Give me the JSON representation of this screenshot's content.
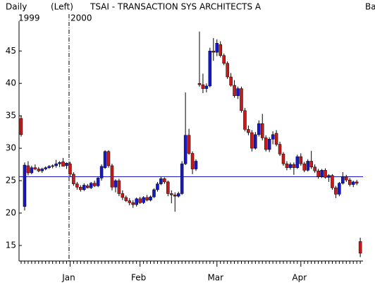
{
  "chart_data": {
    "type": "candlestick",
    "period": "Daily",
    "axis_side": "(Left)",
    "title": "TSAI - TRANSACTION SYS ARCHITECTS A",
    "corner_label": "Ba",
    "years": [
      "1999",
      "2000"
    ],
    "up_color": "#1818c8",
    "down_color": "#cc1818",
    "hline": 25.6,
    "hline_color": "#1818c8",
    "ylim": [
      12.6,
      49.6
    ],
    "yticks": [
      15,
      20,
      25,
      30,
      35,
      40,
      45
    ],
    "categories": [
      null,
      null,
      null,
      null,
      null,
      null,
      null,
      null,
      null,
      null,
      null,
      null,
      null,
      null,
      "Jan",
      null,
      null,
      null,
      null,
      null,
      null,
      null,
      null,
      null,
      null,
      null,
      null,
      null,
      null,
      null,
      null,
      null,
      null,
      null,
      "Feb",
      null,
      null,
      null,
      null,
      null,
      null,
      null,
      null,
      null,
      null,
      null,
      null,
      null,
      null,
      null,
      null,
      null,
      null,
      null,
      null,
      null,
      "Mar",
      null,
      null,
      null,
      null,
      null,
      null,
      null,
      null,
      null,
      null,
      null,
      null,
      null,
      null,
      null,
      null,
      null,
      null,
      null,
      null,
      null,
      null,
      null,
      "Apr",
      null,
      null,
      null,
      null,
      null,
      null,
      null,
      null,
      null,
      null,
      null,
      null,
      null,
      null,
      null,
      null,
      null
    ],
    "ohlc": [
      [
        34.6,
        35,
        31.8,
        32.1
      ],
      [
        21,
        27.8,
        20.4,
        27.4
      ],
      [
        27.3,
        28,
        25.8,
        26.2
      ],
      [
        26.2,
        27.3,
        26,
        27
      ],
      [
        27,
        27.5,
        26.6,
        26.8
      ],
      [
        26.8,
        27.1,
        26.3,
        26.5
      ],
      [
        26.5,
        27,
        26.2,
        26.8
      ],
      [
        26.8,
        27.2,
        26.6,
        27
      ],
      [
        27,
        27.4,
        26.8,
        27.2
      ],
      [
        27.2,
        27.5,
        26.9,
        27.3
      ],
      [
        27.3,
        28.2,
        27,
        27.6
      ],
      [
        27.6,
        28,
        27.1,
        27.8
      ],
      [
        27.9,
        28.5,
        27.5,
        27.2
      ],
      [
        27.3,
        27.8,
        26.8,
        27.7
      ],
      [
        27.6,
        27.9,
        25.6,
        26
      ],
      [
        26,
        26.3,
        24.2,
        24.5
      ],
      [
        24.5,
        24.8,
        23.6,
        24
      ],
      [
        24,
        24.3,
        23.3,
        23.6
      ],
      [
        23.6,
        24.6,
        23.4,
        24.3
      ],
      [
        24.2,
        24.5,
        23.8,
        23.9
      ],
      [
        23.9,
        24.8,
        23.7,
        24.6
      ],
      [
        24.6,
        25,
        24,
        24.2
      ],
      [
        24.2,
        25.6,
        24,
        25.4
      ],
      [
        25.4,
        27.5,
        25,
        27.2
      ],
      [
        27,
        29.7,
        26.8,
        29.5
      ],
      [
        29.5,
        29.7,
        27,
        27.3
      ],
      [
        27.3,
        27.6,
        23.5,
        24
      ],
      [
        24,
        25.2,
        23.2,
        25
      ],
      [
        25,
        25.3,
        22.6,
        23
      ],
      [
        23,
        23.5,
        22,
        22.4
      ],
      [
        22.4,
        22.7,
        21.7,
        21.9
      ],
      [
        21.9,
        22.3,
        21.2,
        21.6
      ],
      [
        21.6,
        22,
        20.8,
        21.3
      ],
      [
        21.3,
        22.4,
        21,
        22.2
      ],
      [
        22.2,
        22.5,
        21.4,
        21.6
      ],
      [
        21.6,
        22.6,
        21.4,
        22.4
      ],
      [
        22.4,
        22.8,
        21.8,
        22
      ],
      [
        22,
        22.7,
        21.8,
        22.5
      ],
      [
        22.5,
        23.8,
        22.3,
        23.6
      ],
      [
        23.6,
        24.8,
        23.3,
        24.5
      ],
      [
        24.5,
        25.6,
        24.3,
        25.3
      ],
      [
        25.3,
        25.5,
        24.5,
        24.8
      ],
      [
        24.8,
        25,
        22.6,
        23
      ],
      [
        23,
        23.5,
        21.5,
        22.8
      ],
      [
        22.8,
        23.2,
        20.2,
        22.6
      ],
      [
        22.6,
        23.3,
        22.4,
        23
      ],
      [
        23,
        28,
        22.8,
        27.6
      ],
      [
        27.6,
        38.6,
        27.4,
        32
      ],
      [
        32,
        33,
        29,
        29.2
      ],
      [
        29.2,
        29.5,
        26,
        26.8
      ],
      [
        26.8,
        28.3,
        26.5,
        28
      ],
      [
        40,
        48,
        39.5,
        39.8
      ],
      [
        39.8,
        41.5,
        38.5,
        39.2
      ],
      [
        39.2,
        40,
        38.6,
        39.6
      ],
      [
        39.6,
        45.5,
        39.4,
        45
      ],
      [
        45,
        47,
        43.5,
        44.8
      ],
      [
        44.8,
        46.8,
        44.2,
        46.2
      ],
      [
        46,
        46.5,
        44,
        44.3
      ],
      [
        44.3,
        44.6,
        42.8,
        43.1
      ],
      [
        43.1,
        43.4,
        40.7,
        41
      ],
      [
        41,
        41.6,
        39.5,
        39.7
      ],
      [
        39.7,
        40.5,
        37.8,
        38.1
      ],
      [
        38.1,
        39.5,
        37.6,
        39.2
      ],
      [
        39.2,
        39.5,
        35.5,
        35.8
      ],
      [
        35.8,
        36.2,
        32.6,
        32.9
      ],
      [
        32.9,
        33.5,
        32,
        32.4
      ],
      [
        32.4,
        32.8,
        29.5,
        30
      ],
      [
        30,
        32.5,
        29.8,
        32.1
      ],
      [
        32.1,
        34.3,
        31.8,
        33.8
      ],
      [
        33.8,
        35.3,
        31.2,
        31.6
      ],
      [
        31.6,
        32,
        29.5,
        29.8
      ],
      [
        29.8,
        31.7,
        29.4,
        31.4
      ],
      [
        31.4,
        32.6,
        30.6,
        32.1
      ],
      [
        32.3,
        32.8,
        30.3,
        30.6
      ],
      [
        30.6,
        31,
        28.8,
        29.1
      ],
      [
        29.1,
        29.4,
        27.3,
        27.6
      ],
      [
        27.6,
        28,
        26.6,
        27
      ],
      [
        27,
        27.8,
        26.7,
        27.5
      ],
      [
        27.5,
        27.8,
        25.9,
        27
      ],
      [
        27,
        29,
        26.8,
        28.7
      ],
      [
        28.7,
        29.2,
        27.3,
        27.6
      ],
      [
        27.6,
        27.9,
        26.3,
        26.6
      ],
      [
        26.6,
        28.3,
        26.4,
        28
      ],
      [
        28,
        29.6,
        26.8,
        27.1
      ],
      [
        27.1,
        27.5,
        26.2,
        26.5
      ],
      [
        26.5,
        26.8,
        25.3,
        25.6
      ],
      [
        25.6,
        26.8,
        25.4,
        26.6
      ],
      [
        26.6,
        26.9,
        25.3,
        25.5
      ],
      [
        25.5,
        26,
        24.8,
        25.8
      ],
      [
        25.8,
        26,
        23.6,
        23.9
      ],
      [
        23.9,
        24.2,
        22.3,
        22.9
      ],
      [
        22.9,
        24.8,
        22.6,
        24.6
      ],
      [
        24.6,
        26.3,
        24.4,
        25.6
      ],
      [
        25.6,
        25.9,
        24.8,
        25.1
      ],
      [
        25.1,
        25.4,
        24.1,
        24.4
      ],
      [
        24.4,
        25,
        24,
        24.8
      ],
      [
        24.8,
        25.1,
        24.3,
        24.6
      ],
      [
        15.6,
        16.2,
        13.2,
        13.8
      ]
    ]
  }
}
